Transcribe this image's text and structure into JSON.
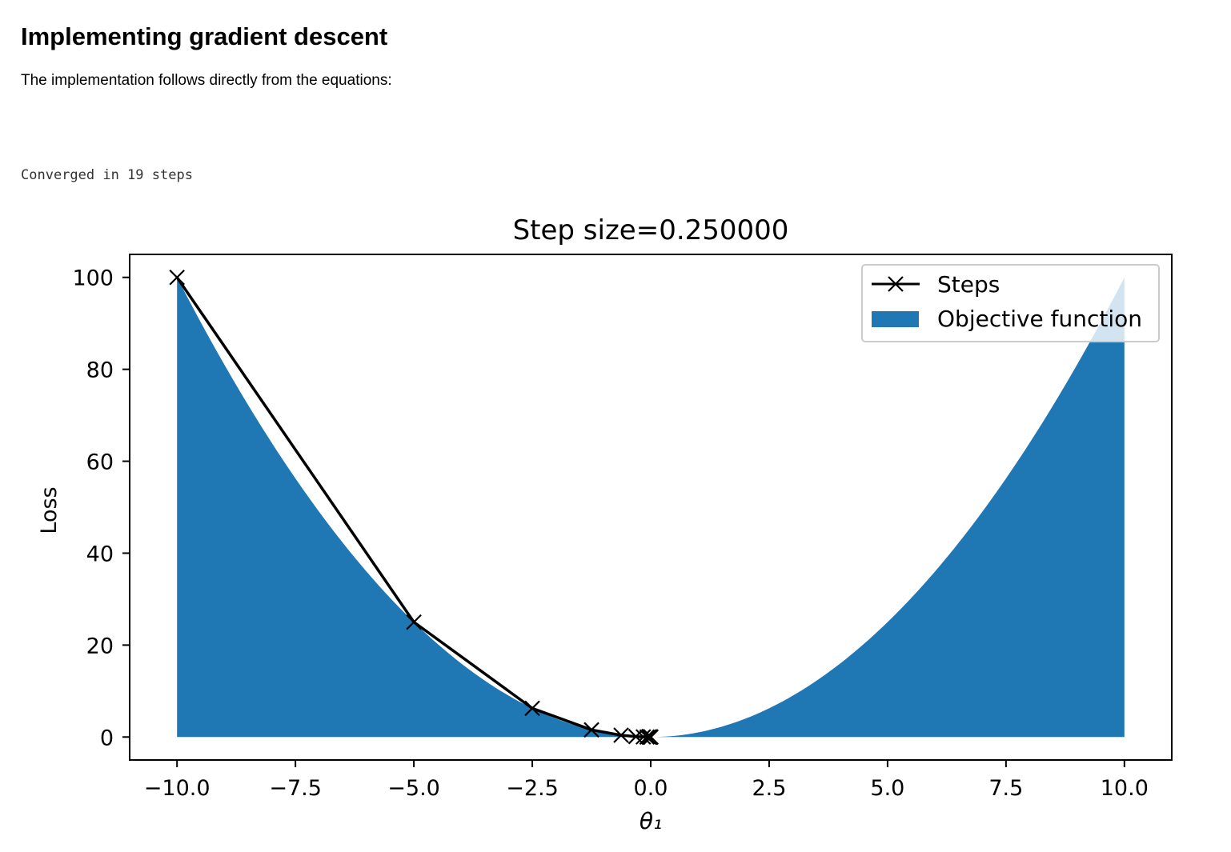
{
  "heading": "Implementing gradient descent",
  "intro": "The implementation follows directly from the equations:",
  "output": "Converged in 19 steps",
  "chart_data": {
    "type": "line",
    "title": "Step size=0.250000",
    "xlabel": "θ₁",
    "ylabel": "Loss",
    "xlim": [
      -11.0,
      11.0
    ],
    "ylim": [
      -5,
      105
    ],
    "xticks": [
      -10.0,
      -7.5,
      -5.0,
      -2.5,
      0.0,
      2.5,
      5.0,
      7.5,
      10.0
    ],
    "xtick_labels": [
      "−10.0",
      "−7.5",
      "−5.0",
      "−2.5",
      "0.0",
      "2.5",
      "5.0",
      "7.5",
      "10.0"
    ],
    "yticks": [
      0,
      20,
      40,
      60,
      80,
      100
    ],
    "ytick_labels": [
      "0",
      "20",
      "40",
      "60",
      "80",
      "100"
    ],
    "legend_placement": "upper right",
    "grid": false,
    "objective": {
      "name": "Objective function",
      "function": "theta^2",
      "x_range": [
        -10,
        10
      ],
      "color": "#1f77b4"
    },
    "series": [
      {
        "name": "Steps",
        "color": "#000000",
        "marker": "x",
        "x": [
          -10,
          -5,
          -2.5,
          -1.25,
          -0.625,
          -0.3125,
          -0.15625,
          -0.078125,
          -0.0390625,
          -0.01953125,
          -0.009765625,
          -0.0048828125,
          -0.00244140625,
          -0.001220703125,
          -0.0006103515625,
          -0.00030517578125,
          -0.000152587890625,
          -7.62939453125e-05,
          -3.814697265625e-05,
          -1.9073486328125e-05
        ],
        "y": [
          100,
          25,
          6.25,
          1.5625,
          0.390625,
          0.09765625,
          0.0244140625,
          0.006103515625,
          0.00152587890625,
          0.0003814697265625,
          9.5367431640625e-05,
          2.38418579101562e-05,
          5.96046447753906e-06,
          1.49011611938477e-06,
          3.72529029846191e-07,
          9.31322574615479e-08,
          2.3283064365387e-08,
          5.82076609134674e-09,
          1.45519152283669e-09,
          3.63797880709171e-10
        ]
      }
    ]
  }
}
